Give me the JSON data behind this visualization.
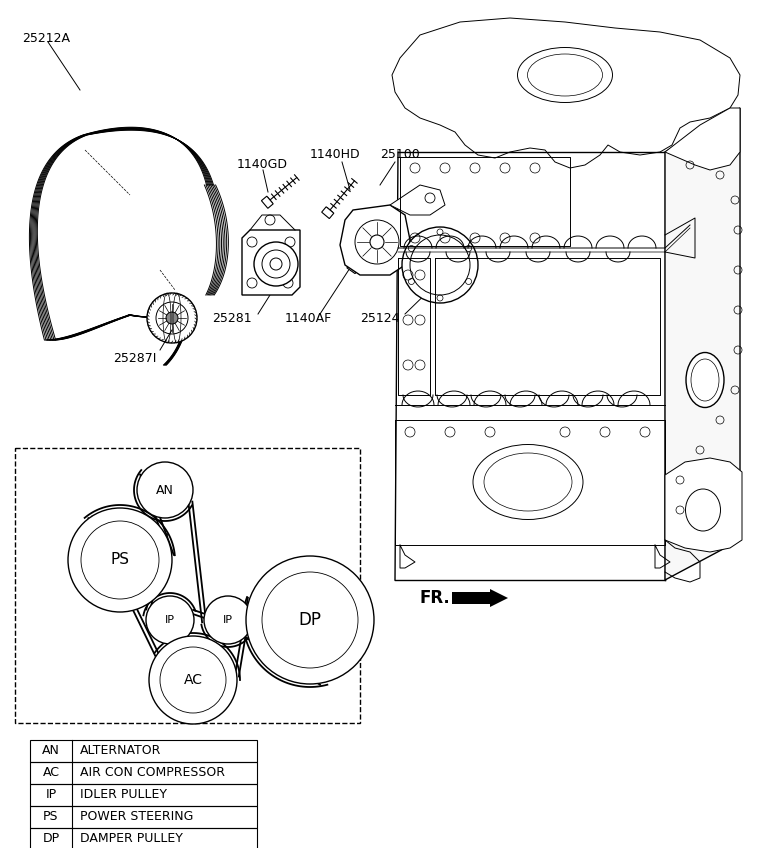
{
  "bg_color": "#ffffff",
  "lc": "#000000",
  "fig_width": 7.58,
  "fig_height": 8.48,
  "legend_rows": [
    [
      "AN",
      "ALTERNATOR"
    ],
    [
      "AC",
      "AIR CON COMPRESSOR"
    ],
    [
      "IP",
      "IDLER PULLEY"
    ],
    [
      "PS",
      "POWER STEERING"
    ],
    [
      "DP",
      "DAMPER PULLEY"
    ]
  ]
}
